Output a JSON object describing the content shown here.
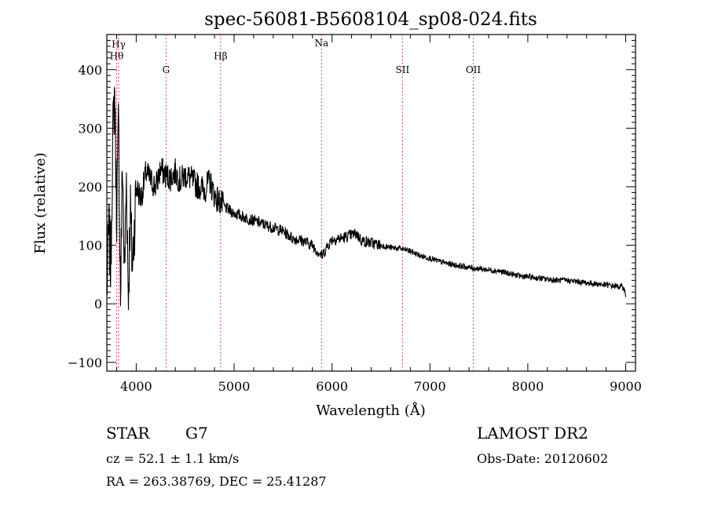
{
  "chart_data": {
    "type": "line",
    "title": "spec-56081-B5608104_sp08-024.fits",
    "xlabel": "Wavelength (Å)",
    "ylabel": "Flux (relative)",
    "xlim": [
      3700,
      9100
    ],
    "ylim": [
      -115,
      460
    ],
    "x_ticks": [
      4000,
      5000,
      6000,
      7000,
      8000,
      9000
    ],
    "x_tick_labels": [
      "4000",
      "5000",
      "6000",
      "7000",
      "8000",
      "9000"
    ],
    "y_ticks": [
      -100,
      0,
      100,
      200,
      300,
      400
    ],
    "y_tick_labels": [
      "−100",
      "0",
      "100",
      "200",
      "300",
      "400"
    ],
    "grid": false,
    "line_color": "#000000",
    "marker_color": "#cc2222",
    "spectral_lines": [
      {
        "label": "Hγ",
        "wavelength": 3820,
        "label_flux": 438
      },
      {
        "label": "Hθ",
        "wavelength": 3800,
        "label_flux": 418
      },
      {
        "label": "G",
        "wavelength": 4305,
        "label_flux": 394
      },
      {
        "label": "Hβ",
        "wavelength": 4862,
        "label_flux": 418
      },
      {
        "label": "Na",
        "wavelength": 5893,
        "label_flux": 440
      },
      {
        "label": "SII",
        "wavelength": 6720,
        "label_flux": 394
      },
      {
        "label": "OII",
        "wavelength": 7443,
        "label_flux": 394
      }
    ],
    "series": [
      {
        "x": [
          3700,
          3720,
          3740,
          3760,
          3780,
          3800,
          3820,
          3840,
          3860,
          3880,
          3900,
          3920,
          3940,
          3960,
          3980,
          4000,
          4050,
          4100,
          4150,
          4200,
          4250,
          4300,
          4350,
          4400,
          4450,
          4500,
          4550,
          4600,
          4650,
          4700,
          4750,
          4800,
          4850,
          4900,
          4950,
          5000,
          5100,
          5200,
          5300,
          5400,
          5500,
          5600,
          5700,
          5800,
          5850,
          5900,
          5950,
          6000,
          6100,
          6200,
          6250,
          6300,
          6400,
          6500,
          6600,
          6700,
          6800,
          6900,
          7000,
          7100,
          7200,
          7300,
          7400,
          7500,
          7600,
          7700,
          7800,
          7900,
          8000,
          8100,
          8200,
          8300,
          8400,
          8500,
          8600,
          8700,
          8800,
          8900,
          8980,
          9000
        ],
        "y": [
          20,
          130,
          60,
          280,
          370,
          150,
          310,
          10,
          250,
          40,
          220,
          10,
          170,
          60,
          130,
          200,
          180,
          225,
          210,
          200,
          230,
          220,
          215,
          225,
          210,
          220,
          215,
          205,
          200,
          195,
          210,
          185,
          175,
          165,
          160,
          155,
          148,
          142,
          136,
          130,
          124,
          112,
          108,
          100,
          90,
          82,
          98,
          110,
          112,
          118,
          120,
          108,
          104,
          100,
          96,
          94,
          90,
          82,
          78,
          72,
          68,
          65,
          62,
          60,
          58,
          56,
          52,
          48,
          46,
          44,
          42,
          40,
          40,
          38,
          36,
          34,
          32,
          30,
          28,
          12
        ]
      }
    ]
  },
  "info": {
    "object_class": "STAR",
    "subclass": "G7",
    "survey": "LAMOST DR2",
    "cz": "cz = 52.1 ± 1.1 km/s",
    "obs_date": "Obs-Date: 20120602",
    "coords": "RA = 263.38769, DEC =  25.41287"
  }
}
